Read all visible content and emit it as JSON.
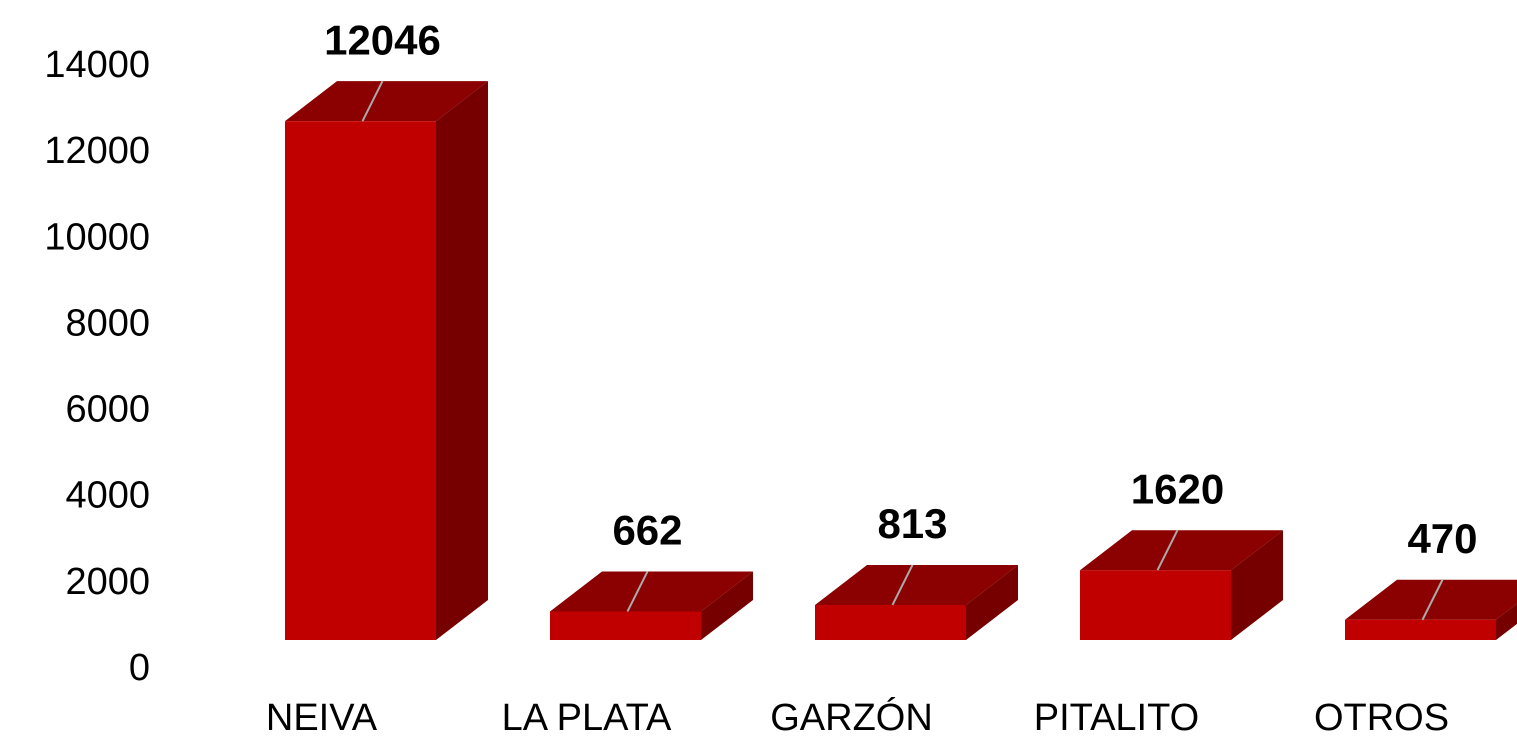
{
  "chart_data": {
    "type": "bar3d",
    "categories": [
      "NEIVA",
      "LA PLATA",
      "GARZÓN",
      "PITALITO",
      "OTROS"
    ],
    "values": [
      12046,
      662,
      813,
      1620,
      470
    ],
    "color": "#c00000",
    "top_color": "#8b0000",
    "side_color": "#760000",
    "ylim": [
      0,
      14000
    ],
    "yticks": [
      0,
      2000,
      4000,
      6000,
      8000,
      10000,
      12000,
      14000
    ],
    "grid": false
  }
}
